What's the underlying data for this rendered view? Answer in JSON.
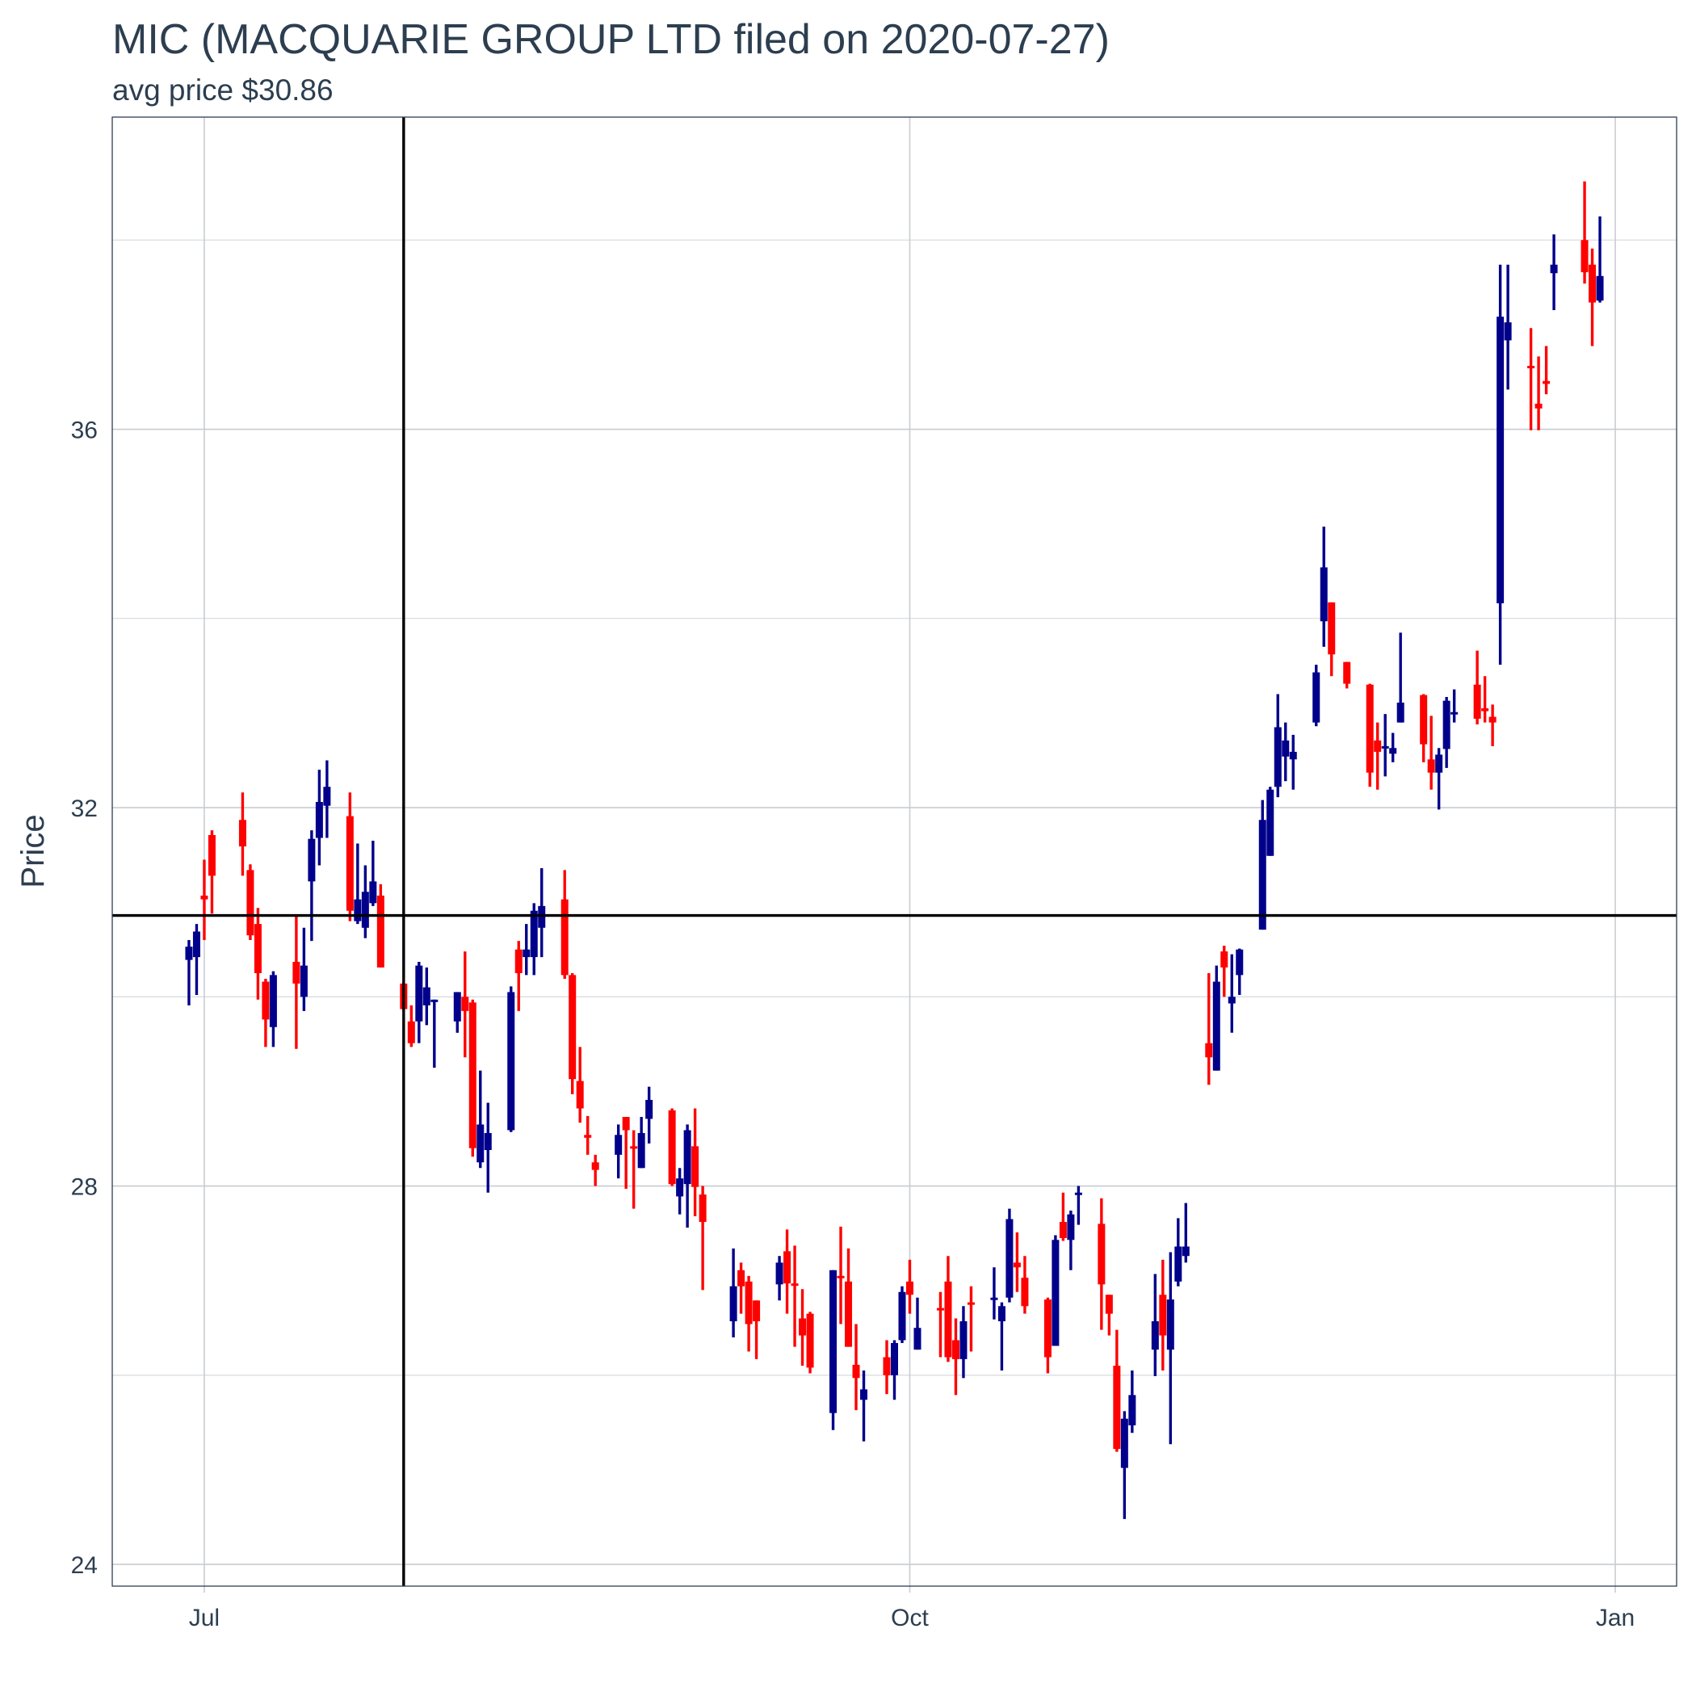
{
  "chart_data": {
    "type": "candlestick",
    "title": "MIC (MACQUARIE GROUP LTD filed on 2020-07-27)",
    "subtitle": "avg price $30.86",
    "y_label": "Price",
    "up_color": "#00008b",
    "down_color": "#ff0000",
    "hline": 30.86,
    "vline": "2020-07-27",
    "grid": true,
    "xlim": [
      "2020-06-19",
      "2021-01-09"
    ],
    "xticks": [
      {
        "value": "2020-07-01",
        "label": "Jul"
      },
      {
        "value": "2020-10-01",
        "label": "Oct"
      },
      {
        "value": "2021-01-01",
        "label": "Jan"
      }
    ],
    "ylim": [
      23.77,
      39.3
    ],
    "yticks": [
      24,
      28,
      32,
      36
    ],
    "minor_yticks": [
      26,
      30,
      34,
      38
    ],
    "x": [
      "2020-06-29",
      "2020-06-30",
      "2020-07-01",
      "2020-07-02",
      "2020-07-06",
      "2020-07-07",
      "2020-07-08",
      "2020-07-09",
      "2020-07-10",
      "2020-07-13",
      "2020-07-14",
      "2020-07-15",
      "2020-07-16",
      "2020-07-17",
      "2020-07-20",
      "2020-07-21",
      "2020-07-22",
      "2020-07-23",
      "2020-07-24",
      "2020-07-27",
      "2020-07-28",
      "2020-07-29",
      "2020-07-30",
      "2020-07-31",
      "2020-08-03",
      "2020-08-04",
      "2020-08-05",
      "2020-08-06",
      "2020-08-07",
      "2020-08-10",
      "2020-08-11",
      "2020-08-12",
      "2020-08-13",
      "2020-08-14",
      "2020-08-17",
      "2020-08-18",
      "2020-08-19",
      "2020-08-20",
      "2020-08-21",
      "2020-08-24",
      "2020-08-25",
      "2020-08-26",
      "2020-08-27",
      "2020-08-28",
      "2020-08-31",
      "2020-09-01",
      "2020-09-02",
      "2020-09-03",
      "2020-09-04",
      "2020-09-08",
      "2020-09-09",
      "2020-09-10",
      "2020-09-11",
      "2020-09-14",
      "2020-09-15",
      "2020-09-16",
      "2020-09-17",
      "2020-09-18",
      "2020-09-21",
      "2020-09-22",
      "2020-09-23",
      "2020-09-24",
      "2020-09-25",
      "2020-09-28",
      "2020-09-29",
      "2020-09-30",
      "2020-10-01",
      "2020-10-02",
      "2020-10-05",
      "2020-10-06",
      "2020-10-07",
      "2020-10-08",
      "2020-10-09",
      "2020-10-12",
      "2020-10-13",
      "2020-10-14",
      "2020-10-15",
      "2020-10-16",
      "2020-10-19",
      "2020-10-20",
      "2020-10-21",
      "2020-10-22",
      "2020-10-23",
      "2020-10-26",
      "2020-10-27",
      "2020-10-28",
      "2020-10-29",
      "2020-10-30",
      "2020-11-02",
      "2020-11-03",
      "2020-11-04",
      "2020-11-05",
      "2020-11-06",
      "2020-11-09",
      "2020-11-10",
      "2020-11-11",
      "2020-11-12",
      "2020-11-13",
      "2020-11-16",
      "2020-11-17",
      "2020-11-18",
      "2020-11-19",
      "2020-11-20",
      "2020-11-23",
      "2020-11-24",
      "2020-11-25",
      "2020-11-27",
      "2020-11-30",
      "2020-12-01",
      "2020-12-02",
      "2020-12-03",
      "2020-12-04",
      "2020-12-07",
      "2020-12-08",
      "2020-12-09",
      "2020-12-10",
      "2020-12-11",
      "2020-12-14",
      "2020-12-15",
      "2020-12-16",
      "2020-12-17",
      "2020-12-18",
      "2020-12-21",
      "2020-12-22",
      "2020-12-23",
      "2020-12-24",
      "2020-12-28",
      "2020-12-29",
      "2020-12-30"
    ],
    "open": [
      30.39,
      30.42,
      31.07,
      31.71,
      31.87,
      31.34,
      30.77,
      30.16,
      29.68,
      30.37,
      30.0,
      31.22,
      31.68,
      32.02,
      31.91,
      30.8,
      30.73,
      30.99,
      31.07,
      30.14,
      29.74,
      29.74,
      29.91,
      29.95,
      29.74,
      30.0,
      29.94,
      28.25,
      28.38,
      28.59,
      30.5,
      30.42,
      30.42,
      30.73,
      31.03,
      30.23,
      29.11,
      28.54,
      28.25,
      28.33,
      28.73,
      28.42,
      28.19,
      28.71,
      28.8,
      27.89,
      28.02,
      28.42,
      27.91,
      26.57,
      27.11,
      26.99,
      26.79,
      26.96,
      27.31,
      26.97,
      26.6,
      26.65,
      25.6,
      27.05,
      26.99,
      26.11,
      25.74,
      26.19,
      26.0,
      26.37,
      26.99,
      26.27,
      26.71,
      26.99,
      26.37,
      26.17,
      26.77,
      26.8,
      26.57,
      26.82,
      27.19,
      27.03,
      26.8,
      26.31,
      27.62,
      27.43,
      27.91,
      27.6,
      26.85,
      26.1,
      25.02,
      25.47,
      26.27,
      26.85,
      26.27,
      26.99,
      27.26,
      29.51,
      29.22,
      30.48,
      29.93,
      30.23,
      30.71,
      31.49,
      32.22,
      32.54,
      32.51,
      32.9,
      33.97,
      34.17,
      33.54,
      33.3,
      32.71,
      32.63,
      32.57,
      32.9,
      33.19,
      32.51,
      32.37,
      32.62,
      32.99,
      33.3,
      33.05,
      32.96,
      34.16,
      36.94,
      36.67,
      36.27,
      36.51,
      37.65,
      38.0,
      37.74,
      37.36
    ],
    "high": [
      30.6,
      30.77,
      31.45,
      31.76,
      32.16,
      31.4,
      30.94,
      30.19,
      30.27,
      30.85,
      30.73,
      31.76,
      32.4,
      32.5,
      32.16,
      31.62,
      31.39,
      31.65,
      31.19,
      30.16,
      29.91,
      30.37,
      30.31,
      29.97,
      30.05,
      30.48,
      29.97,
      29.22,
      28.88,
      30.11,
      30.59,
      30.77,
      30.99,
      31.36,
      31.34,
      30.25,
      29.47,
      28.74,
      28.33,
      28.65,
      28.73,
      28.59,
      28.73,
      29.05,
      28.82,
      28.19,
      28.65,
      28.82,
      28.0,
      27.34,
      27.19,
      27.05,
      26.79,
      27.26,
      27.54,
      27.37,
      26.91,
      26.67,
      27.11,
      27.57,
      27.34,
      26.54,
      26.05,
      26.37,
      26.37,
      26.94,
      27.22,
      26.82,
      26.88,
      27.26,
      26.6,
      26.73,
      26.94,
      27.14,
      26.77,
      27.76,
      27.51,
      27.26,
      26.82,
      27.48,
      27.93,
      27.74,
      28.0,
      27.87,
      26.85,
      26.48,
      25.62,
      26.05,
      27.07,
      27.22,
      27.3,
      27.66,
      27.82,
      30.25,
      30.33,
      30.54,
      30.45,
      30.51,
      32.08,
      32.22,
      33.2,
      32.9,
      32.77,
      33.51,
      34.97,
      34.17,
      33.54,
      33.31,
      32.9,
      32.99,
      32.79,
      33.85,
      33.2,
      32.97,
      32.63,
      33.17,
      33.25,
      33.66,
      33.39,
      33.09,
      37.74,
      37.74,
      37.07,
      36.77,
      36.88,
      38.06,
      38.62,
      37.91,
      38.25
    ],
    "low": [
      29.91,
      30.02,
      30.6,
      30.88,
      31.28,
      30.6,
      29.97,
      29.47,
      29.47,
      29.45,
      29.85,
      30.59,
      31.39,
      31.68,
      30.8,
      30.77,
      30.62,
      30.96,
      30.31,
      29.85,
      29.47,
      29.51,
      29.7,
      29.25,
      29.62,
      29.36,
      28.31,
      28.19,
      27.93,
      28.57,
      29.85,
      30.23,
      30.23,
      30.42,
      30.19,
      28.97,
      28.67,
      28.33,
      28.0,
      28.08,
      27.97,
      27.76,
      28.19,
      28.45,
      28.0,
      27.7,
      27.56,
      27.68,
      26.9,
      26.4,
      26.65,
      26.25,
      26.17,
      26.79,
      26.65,
      26.3,
      26.1,
      26.02,
      25.42,
      26.54,
      26.3,
      25.63,
      25.3,
      25.8,
      25.74,
      26.34,
      26.65,
      26.27,
      26.19,
      26.14,
      25.79,
      25.97,
      26.25,
      26.59,
      26.05,
      26.77,
      26.88,
      26.65,
      26.02,
      26.31,
      27.42,
      27.11,
      27.59,
      26.48,
      26.42,
      25.19,
      24.48,
      25.39,
      25.99,
      26.05,
      25.27,
      26.94,
      27.19,
      29.07,
      29.22,
      30.0,
      29.62,
      30.02,
      30.71,
      31.49,
      32.11,
      32.28,
      32.19,
      32.86,
      33.7,
      33.39,
      33.26,
      32.22,
      32.19,
      32.33,
      32.48,
      32.9,
      32.48,
      32.19,
      31.98,
      32.42,
      32.9,
      32.88,
      32.9,
      32.65,
      33.51,
      36.42,
      35.99,
      35.99,
      36.37,
      37.26,
      37.54,
      36.88,
      37.34
    ],
    "close": [
      30.53,
      30.69,
      31.03,
      31.28,
      31.59,
      30.65,
      30.25,
      29.76,
      30.23,
      30.14,
      30.33,
      31.67,
      32.06,
      32.22,
      30.91,
      31.03,
      31.11,
      31.22,
      30.31,
      29.87,
      29.51,
      30.33,
      30.1,
      29.97,
      30.05,
      29.85,
      28.4,
      28.65,
      28.56,
      30.05,
      30.25,
      30.5,
      30.91,
      30.96,
      30.23,
      29.13,
      28.82,
      28.51,
      28.17,
      28.54,
      28.59,
      28.4,
      28.56,
      28.91,
      28.02,
      28.08,
      28.59,
      27.99,
      27.62,
      26.94,
      26.94,
      26.54,
      26.57,
      27.19,
      26.97,
      26.95,
      26.42,
      26.08,
      27.11,
      27.03,
      26.3,
      25.97,
      25.85,
      26.0,
      26.34,
      26.88,
      26.85,
      26.5,
      26.69,
      26.19,
      26.17,
      26.57,
      26.75,
      26.82,
      26.73,
      27.65,
      27.14,
      26.73,
      26.19,
      27.43,
      27.45,
      27.7,
      27.93,
      26.96,
      26.65,
      25.22,
      25.54,
      25.79,
      26.57,
      26.42,
      26.8,
      27.36,
      27.36,
      29.36,
      30.16,
      30.31,
      30.0,
      30.5,
      31.87,
      32.19,
      32.85,
      32.71,
      32.59,
      33.43,
      34.54,
      33.62,
      33.31,
      32.37,
      32.59,
      32.65,
      32.63,
      33.11,
      32.67,
      32.37,
      32.56,
      33.13,
      33.01,
      32.94,
      33.02,
      32.9,
      37.19,
      37.13,
      36.65,
      36.22,
      36.48,
      37.74,
      37.66,
      37.34,
      37.62
    ]
  }
}
